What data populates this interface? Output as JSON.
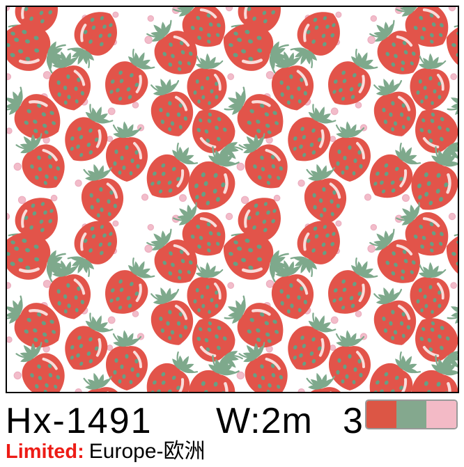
{
  "product": {
    "code": "Hx-1491",
    "width_spec": "W:2m",
    "color_count": "3",
    "limited_label": "Limited:",
    "limited_region": "Europe-欧洲"
  },
  "swatches": [
    {
      "name": "red",
      "hex": "#dc5645"
    },
    {
      "name": "green",
      "hex": "#84a88e"
    },
    {
      "name": "pink",
      "hex": "#f3bac6"
    }
  ],
  "pattern": {
    "name": "strawberries-and-polka-dots",
    "background": "#ffffff",
    "frame_color": "#000000",
    "berry_red": "#e2544a",
    "leaf_green": "#7ea98c",
    "seed_green": "#66a084",
    "dot_pink": "#f2bcca",
    "dot_edge_pink": "#ecaebf"
  },
  "colors": {
    "limited_red": "#ed1c16",
    "text_black": "#000000",
    "swatch_border_gray": "#999999"
  }
}
